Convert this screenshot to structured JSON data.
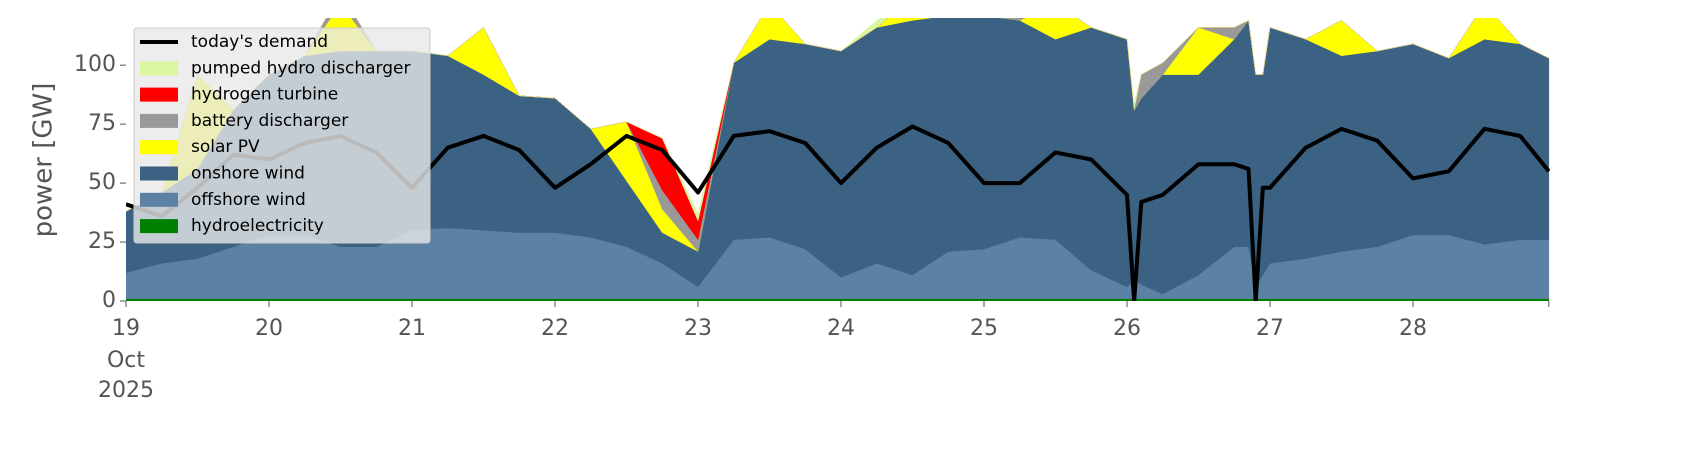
{
  "chart_data": {
    "type": "stacked_area",
    "ylabel": "power [GW]",
    "x": [
      19,
      19.25,
      19.5,
      19.75,
      20,
      20.25,
      20.5,
      20.75,
      21,
      21.25,
      21.5,
      21.75,
      22,
      22.25,
      22.5,
      22.75,
      23,
      23.25,
      23.5,
      23.75,
      24,
      24.25,
      24.5,
      24.75,
      25,
      25.25,
      25.5,
      25.75,
      26,
      26.05,
      26.1,
      26.25,
      26.5,
      26.75,
      26.85,
      26.9,
      26.95,
      27,
      27.25,
      27.5,
      27.75,
      28,
      28.25,
      28.5,
      28.75,
      28.95
    ],
    "xlim": [
      19,
      28.95
    ],
    "xticks": [
      19,
      20,
      21,
      22,
      23,
      24,
      25,
      26,
      27,
      28
    ],
    "xtick_first_sublabels": [
      "Oct",
      "2025"
    ],
    "ylim": [
      0,
      120
    ],
    "yticks": [
      0,
      25,
      50,
      75,
      100
    ],
    "legend": "upper left",
    "series": [
      {
        "name": "today's demand",
        "kind": "line",
        "color": "#000000",
        "values": [
          41,
          36,
          48,
          62,
          60,
          67,
          70,
          63,
          48,
          65,
          70,
          64,
          48,
          58,
          70,
          64,
          46,
          70,
          72,
          67,
          50,
          65,
          74,
          67,
          50,
          50,
          63,
          60,
          45,
          0,
          42,
          45,
          58,
          58,
          56,
          0,
          48,
          48,
          65,
          73,
          68,
          52,
          55,
          73,
          70,
          55
        ]
      },
      {
        "name": "pumped hydro discharger",
        "color": "#d9f7a0",
        "values": [
          0,
          0,
          0,
          0,
          0,
          0,
          0,
          0,
          0,
          0,
          0,
          0,
          0,
          0,
          0,
          0,
          3,
          0,
          0,
          0,
          0,
          3,
          0,
          0,
          0,
          0,
          0,
          0,
          0,
          3,
          0,
          0,
          0,
          0,
          0,
          0,
          0,
          0,
          0,
          0,
          0,
          0,
          0,
          0,
          0,
          0
        ]
      },
      {
        "name": "hydrogen turbine",
        "color": "#ff0000",
        "values": [
          0,
          0,
          0,
          0,
          0,
          0,
          0,
          0,
          0,
          0,
          0,
          0,
          0,
          0,
          0,
          22,
          8,
          0,
          0,
          0,
          0,
          0,
          0,
          0,
          0,
          0,
          0,
          0,
          0,
          0,
          0,
          0,
          0,
          0,
          0,
          0,
          0,
          0,
          0,
          0,
          0,
          0,
          0,
          0,
          0,
          0
        ]
      },
      {
        "name": "battery discharger",
        "color": "#999999",
        "values": [
          0,
          0,
          0,
          0,
          0,
          0,
          5,
          0,
          0,
          0,
          0,
          0,
          0,
          0,
          0,
          8,
          5,
          0,
          0,
          0,
          0,
          0,
          0,
          0,
          0,
          3,
          0,
          0,
          0,
          0,
          10,
          5,
          0,
          5,
          0,
          0,
          0,
          0,
          0,
          0,
          0,
          0,
          0,
          0,
          0,
          0
        ]
      },
      {
        "name": "solar PV",
        "color": "#ffff00",
        "values": [
          0,
          0,
          40,
          0,
          0,
          0,
          20,
          0,
          0,
          0,
          20,
          0,
          0,
          0,
          25,
          10,
          0,
          0,
          15,
          0,
          0,
          0,
          10,
          0,
          0,
          0,
          15,
          0,
          0,
          0,
          0,
          0,
          20,
          0,
          0,
          0,
          0,
          0,
          0,
          15,
          0,
          0,
          0,
          15,
          0,
          0
        ]
      },
      {
        "name": "onshore wind",
        "color": "#3b6183",
        "values": [
          26,
          30,
          38,
          58,
          68,
          76,
          83,
          83,
          76,
          73,
          66,
          58,
          57,
          46,
          28,
          13,
          15,
          75,
          84,
          87,
          96,
          100,
          108,
          100,
          99,
          92,
          85,
          103,
          105,
          72,
          79,
          93,
          85,
          88,
          96,
          90,
          85,
          100,
          93,
          83,
          83,
          81,
          75,
          87,
          83,
          77
        ]
      },
      {
        "name": "offshore wind",
        "color": "#5b81a4",
        "values": [
          11,
          15,
          17,
          22,
          27,
          27,
          22,
          22,
          29,
          30,
          29,
          28,
          28,
          26,
          22,
          15,
          5,
          25,
          26,
          21,
          9,
          15,
          10,
          20,
          21,
          26,
          25,
          12,
          5,
          8,
          6,
          2,
          10,
          22,
          22,
          5,
          10,
          15,
          17,
          20,
          22,
          27,
          27,
          23,
          25,
          25
        ]
      },
      {
        "name": "hydroelectricity",
        "color": "#008000",
        "values": [
          1,
          1,
          1,
          1,
          1,
          1,
          1,
          1,
          1,
          1,
          1,
          1,
          1,
          1,
          1,
          1,
          1,
          1,
          1,
          1,
          1,
          1,
          1,
          1,
          1,
          1,
          1,
          1,
          1,
          1,
          1,
          1,
          1,
          1,
          1,
          1,
          1,
          1,
          1,
          1,
          1,
          1,
          1,
          1,
          1,
          1
        ]
      }
    ]
  }
}
